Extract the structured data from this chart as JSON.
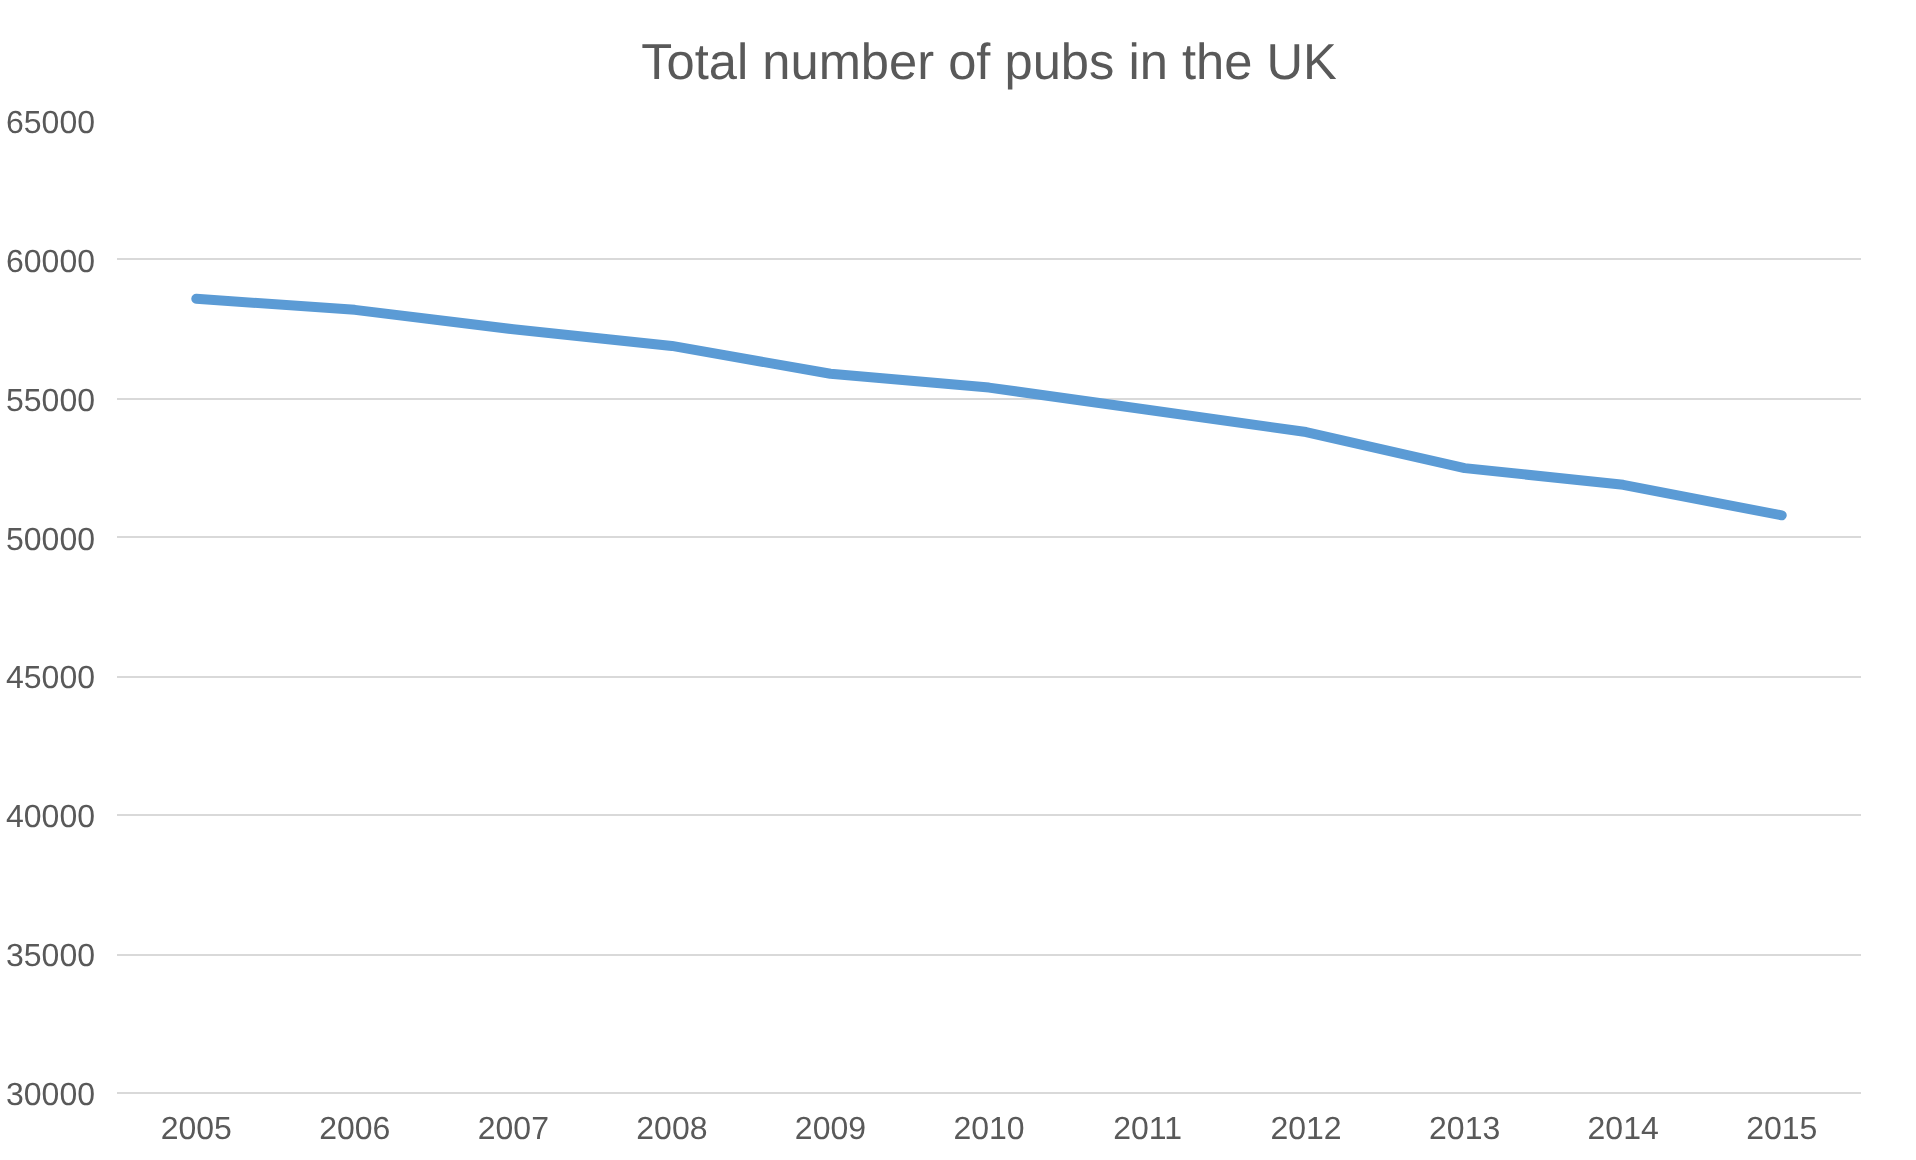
{
  "chart_data": {
    "type": "line",
    "title": "Total number of pubs in the UK",
    "categories": [
      "2005",
      "2006",
      "2007",
      "2008",
      "2009",
      "2010",
      "2011",
      "2012",
      "2013",
      "2014",
      "2015"
    ],
    "series": [
      {
        "color": "#5b9bd5",
        "values": [
          58600,
          58200,
          57500,
          56900,
          55900,
          55400,
          54600,
          53800,
          52500,
          51900,
          50800
        ]
      }
    ],
    "ylim": [
      30000,
      65000
    ],
    "yticks": [
      30000,
      35000,
      40000,
      45000,
      50000,
      55000,
      60000,
      65000
    ],
    "grid": "y",
    "marker": "none",
    "line_style": "solid"
  }
}
